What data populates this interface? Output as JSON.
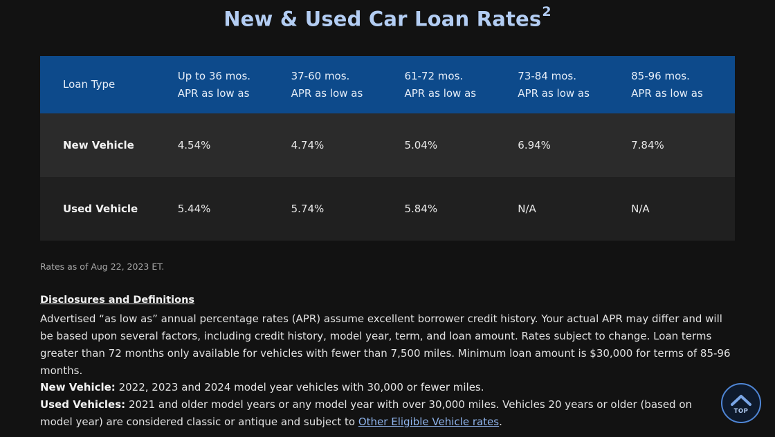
{
  "title": {
    "text": "New & Used Car Loan Rates",
    "footnote": "2"
  },
  "table": {
    "header": {
      "loan_type": "Loan Type",
      "columns": [
        {
          "term": "Up to 36 mos.",
          "sub": "APR as low as"
        },
        {
          "term": "37-60 mos.",
          "sub": "APR as low as"
        },
        {
          "term": "61-72 mos.",
          "sub": "APR as low as"
        },
        {
          "term": "73-84 mos.",
          "sub": "APR as low as"
        },
        {
          "term": "85-96 mos.",
          "sub": "APR as low as"
        }
      ]
    },
    "rows": [
      {
        "label": "New Vehicle",
        "values": [
          "4.54%",
          "4.74%",
          "5.04%",
          "6.94%",
          "7.84%"
        ]
      },
      {
        "label": "Used Vehicle",
        "values": [
          "5.44%",
          "5.74%",
          "5.84%",
          "N/A",
          "N/A"
        ]
      }
    ]
  },
  "rates_as_of": "Rates as of Aug 22, 2023 ET.",
  "disclosures": {
    "heading": "Disclosures and Definitions",
    "body": "Advertised “as low as” annual percentage rates (APR) assume excellent borrower credit history. Your actual APR may differ and will be based upon several factors, including credit history, model year, term, and loan amount. Rates subject to change. Loan terms greater than 72 months only available for vehicles with fewer than 7,500 miles. Minimum loan amount is $30,000 for terms of 85-96 months."
  },
  "definitions": {
    "new_label": "New Vehicle:",
    "new_text": " 2022, 2023 and 2024 model year vehicles with 30,000 or fewer miles.",
    "used_label": "Used Vehicles:",
    "used_text": " 2021 and older model years or any model year with over 30,000 miles. Vehicles 20 years or older (based on model year) are considered classic or antique and subject to ",
    "link_text": "Other Eligible Vehicle rates",
    "end": "."
  },
  "top_button": {
    "label": "TOP",
    "icon": "chevron-up-icon"
  },
  "colors": {
    "background": "#121212",
    "title": "#b3cdf3",
    "header_bg": "#0d4a8b",
    "row_new_bg": "#2b2b2b",
    "row_used_bg": "#202020",
    "link": "#8fb4ec"
  }
}
